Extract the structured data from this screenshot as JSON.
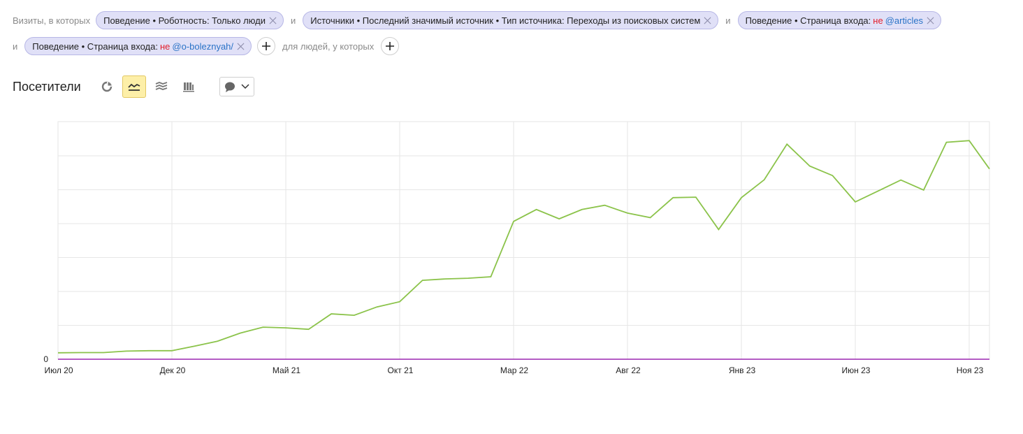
{
  "filters": {
    "lead_label": "Визиты, в которых",
    "conjunction": "и",
    "people_label": "для людей, у которых",
    "chips": [
      {
        "text": "Поведение • Роботность: Только люди",
        "not": "",
        "value": ""
      },
      {
        "text": "Источники • Последний значимый источник • Тип источника: Переходы из поисковых систем",
        "not": "",
        "value": ""
      },
      {
        "text": "Поведение • Страница входа:",
        "not": "не",
        "value": "@articles"
      },
      {
        "text": "Поведение • Страница входа:",
        "not": "не",
        "value": "@o-boleznyah/"
      }
    ],
    "add_icon": "plus-icon",
    "remove_icon": "close-icon"
  },
  "toolbar": {
    "title": "Посетители",
    "buttons": [
      {
        "icon": "pie-chart-icon",
        "active": false
      },
      {
        "icon": "line-chart-icon",
        "active": true
      },
      {
        "icon": "area-chart-icon",
        "active": false
      },
      {
        "icon": "bar-chart-icon",
        "active": false
      }
    ],
    "comment_icon": "comment-icon",
    "dropdown_icon": "chevron-down-icon"
  },
  "chart_data": {
    "type": "line",
    "title": "",
    "xlabel": "",
    "ylabel": "",
    "grid": true,
    "line_color": "#8bc34a",
    "baseline_color": "#9c27b0",
    "x_ticks": [
      "Июл 20",
      "Дек 20",
      "Май 21",
      "Окт 21",
      "Мар 22",
      "Авг 22",
      "Янв 23",
      "Июн 23",
      "Ноя 23"
    ],
    "y_ticks": [
      "0"
    ],
    "ylim": [
      0,
      100
    ],
    "x": [
      "2020-07",
      "2020-08",
      "2020-09",
      "2020-10",
      "2020-11",
      "2020-12",
      "2021-01",
      "2021-02",
      "2021-03",
      "2021-04",
      "2021-05",
      "2021-06",
      "2021-07",
      "2021-08",
      "2021-09",
      "2021-10",
      "2021-11",
      "2021-12",
      "2022-01",
      "2022-02",
      "2022-03",
      "2022-04",
      "2022-05",
      "2022-06",
      "2022-07",
      "2022-08",
      "2022-09",
      "2022-10",
      "2022-11",
      "2022-12",
      "2023-01",
      "2023-02",
      "2023-03",
      "2023-04",
      "2023-05",
      "2023-06",
      "2023-07",
      "2023-08",
      "2023-09",
      "2023-10",
      "2023-11",
      "2023-12"
    ],
    "series": [
      {
        "name": "",
        "values": [
          2.7,
          2.8,
          2.8,
          3.4,
          3.6,
          3.6,
          5.5,
          7.6,
          11.0,
          13.5,
          13.2,
          12.6,
          19.1,
          18.5,
          22.0,
          24.2,
          33.2,
          33.8,
          34.1,
          34.7,
          58.0,
          63.0,
          59.1,
          63.0,
          64.8,
          61.5,
          59.6,
          68.0,
          68.2,
          54.6,
          68.0,
          75.5,
          90.5,
          81.3,
          77.3,
          66.2,
          70.8,
          75.4,
          71.2,
          91.3,
          92.0,
          80.1
        ]
      }
    ]
  }
}
